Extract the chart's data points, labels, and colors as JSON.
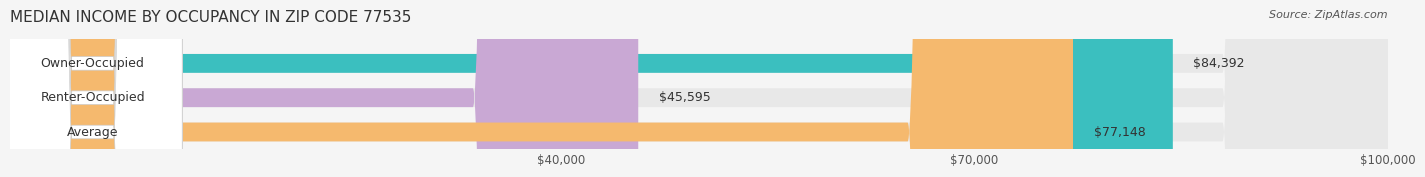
{
  "title": "MEDIAN INCOME BY OCCUPANCY IN ZIP CODE 77535",
  "source": "Source: ZipAtlas.com",
  "categories": [
    "Owner-Occupied",
    "Renter-Occupied",
    "Average"
  ],
  "values": [
    84392,
    45595,
    77148
  ],
  "bar_colors": [
    "#3bbfbf",
    "#c9a8d4",
    "#f5b96e"
  ],
  "bar_labels": [
    "$84,392",
    "$45,595",
    "$77,148"
  ],
  "xlim": [
    0,
    100000
  ],
  "xticks": [
    40000,
    70000,
    100000
  ],
  "xticklabels": [
    "$40,000",
    "$70,000",
    "$100,000"
  ],
  "background_color": "#f5f5f5",
  "bar_bg_color": "#e8e8e8",
  "title_fontsize": 11,
  "source_fontsize": 8,
  "label_fontsize": 9,
  "tick_fontsize": 8.5
}
